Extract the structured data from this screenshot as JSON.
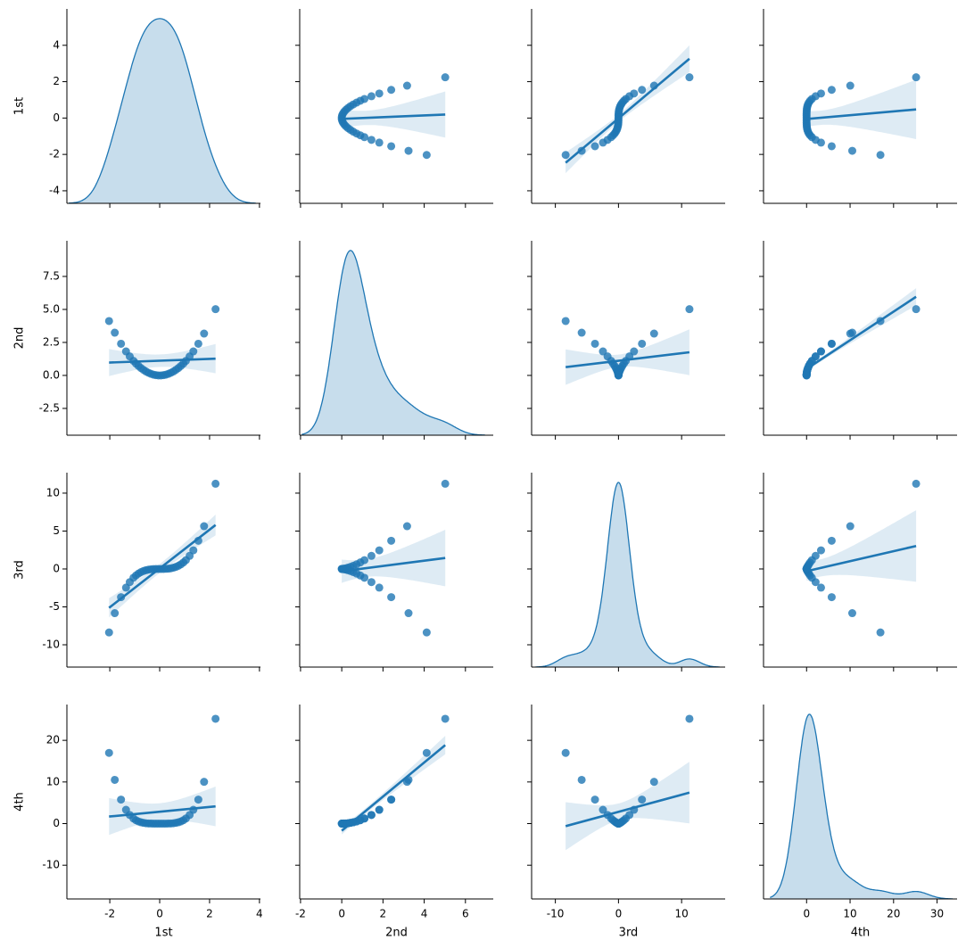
{
  "chart_data": {
    "type": "pairplot",
    "kind": "reg",
    "diag_kind": "kde",
    "color": "#1f77b4",
    "variables": [
      {
        "name": "1st",
        "lim": [
          -3.72,
          4.04
        ],
        "ticks": [
          -4,
          -2,
          0,
          2,
          4
        ],
        "values": [
          -2.03,
          -1.8,
          -1.55,
          -1.35,
          -1.2,
          -1.05,
          -0.95,
          -0.85,
          -0.75,
          -0.65,
          -0.55,
          -0.45,
          -0.35,
          -0.25,
          -0.15,
          -0.05,
          0.05,
          0.15,
          0.25,
          0.35,
          0.45,
          0.55,
          0.65,
          0.75,
          0.85,
          0.95,
          1.05,
          1.2,
          1.35,
          1.55,
          1.78,
          2.24
        ],
        "ylim": [
          -4.69,
          6.0
        ]
      },
      {
        "name": "2nd",
        "lim": [
          -2.04,
          7.35
        ],
        "ticks": [
          -2,
          0,
          2,
          4,
          6
        ],
        "yticks": [
          {
            "value": -2.5,
            "label": "-2.5"
          },
          {
            "value": 0,
            "label": "0.0"
          },
          {
            "value": 2.5,
            "label": "2.5"
          },
          {
            "value": 5,
            "label": "5.0"
          },
          {
            "value": 7.5,
            "label": "7.5"
          }
        ],
        "values": [
          4.12,
          3.24,
          2.4,
          1.82,
          1.44,
          1.1,
          0.9,
          0.72,
          0.56,
          0.42,
          0.3,
          0.2,
          0.12,
          0.06,
          0.02,
          0.0,
          0.0,
          0.02,
          0.06,
          0.12,
          0.2,
          0.3,
          0.42,
          0.56,
          0.72,
          0.9,
          1.1,
          1.44,
          1.82,
          2.4,
          3.17,
          5.02
        ],
        "ylim": [
          -4.53,
          10.2
        ]
      },
      {
        "name": "3rd",
        "lim": [
          -13.76,
          16.9
        ],
        "ticks": [
          -10,
          0,
          10
        ],
        "yticks": [
          -10,
          -5,
          0,
          5,
          10
        ],
        "values": [
          -8.37,
          -5.83,
          -3.72,
          -2.46,
          -1.73,
          -1.16,
          -0.86,
          -0.61,
          -0.42,
          -0.27,
          -0.17,
          -0.09,
          -0.04,
          -0.02,
          0.0,
          0.0,
          0.0,
          0.0,
          0.02,
          0.04,
          0.09,
          0.17,
          0.27,
          0.42,
          0.61,
          0.86,
          1.16,
          1.73,
          2.46,
          3.72,
          5.64,
          11.24
        ],
        "ylim": [
          -12.94,
          12.7
        ]
      },
      {
        "name": "4th",
        "lim": [
          -9.9,
          34.6
        ],
        "ticks": [
          0,
          10,
          20,
          30
        ],
        "yticks": [
          -10,
          0,
          10,
          20
        ],
        "values": [
          16.98,
          10.5,
          5.77,
          3.32,
          2.07,
          1.22,
          0.81,
          0.52,
          0.32,
          0.18,
          0.09,
          0.04,
          0.02,
          0.0,
          0.0,
          0.0,
          0.0,
          0.0,
          0.0,
          0.02,
          0.04,
          0.09,
          0.18,
          0.32,
          0.52,
          0.81,
          1.22,
          2.07,
          3.32,
          5.77,
          10.04,
          25.18
        ],
        "ylim": [
          -18.1,
          28.6
        ]
      }
    ]
  }
}
